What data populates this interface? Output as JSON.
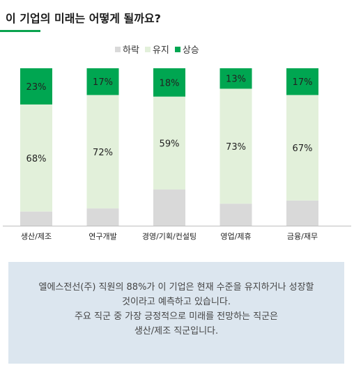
{
  "header": {
    "title": "이 기업의 미래는 어떻게 될까요?"
  },
  "legend": [
    {
      "label": "하락",
      "color": "#d9d9d9"
    },
    {
      "label": "유지",
      "color": "#e2f0da"
    },
    {
      "label": "상승",
      "color": "#00a651"
    }
  ],
  "chart_data": {
    "type": "bar",
    "stacked": true,
    "categories": [
      "생산/제조",
      "연구개발",
      "경영/기획/컨설팅",
      "영업/제휴",
      "금융/재무"
    ],
    "series": [
      {
        "name": "하락",
        "values": [
          9,
          11,
          23,
          14,
          16
        ],
        "color": "#d9d9d9"
      },
      {
        "name": "유지",
        "values": [
          68,
          72,
          59,
          73,
          67
        ],
        "color": "#e2f0da",
        "labels": [
          "68%",
          "72%",
          "59%",
          "73%",
          "67%"
        ]
      },
      {
        "name": "상승",
        "values": [
          23,
          17,
          18,
          13,
          17
        ],
        "color": "#00a651",
        "labels": [
          "23%",
          "17%",
          "18%",
          "13%",
          "17%"
        ]
      }
    ],
    "ylim": [
      0,
      100
    ],
    "legend_position": "top-center",
    "grid": false
  },
  "callout": {
    "lines": [
      "엘에스전선(주) 직원의 88%가 이 기업은 현재 수준을 유지하거나 성장할",
      "것이라고 예측하고 있습니다.",
      "주요 직군 중 가장 긍정적으로 미래를 전망하는 직군은",
      "생산/제조 직군입니다."
    ]
  }
}
